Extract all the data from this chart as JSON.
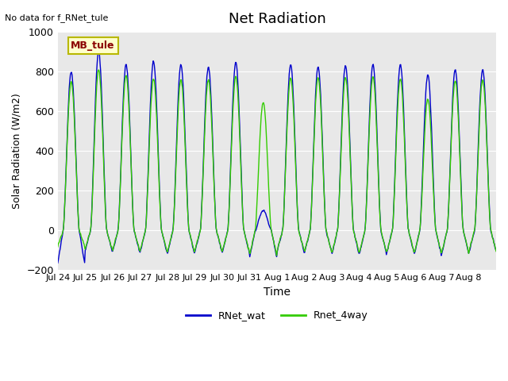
{
  "title": "Net Radiation",
  "xlabel": "Time",
  "ylabel": "Solar Radiation (W/m2)",
  "ylim": [
    -200,
    1000
  ],
  "background_color": "#e8e8e8",
  "figure_color": "#ffffff",
  "no_data_text": "No data for f_RNet_tule",
  "annotation_text": "MB_tule",
  "annotation_color": "#8b0000",
  "annotation_bg": "#ffffcc",
  "annotation_border": "#b8b800",
  "line1_color": "#0000cc",
  "line2_color": "#33cc00",
  "line1_label": "RNet_wat",
  "line2_label": "Rnet_4way",
  "xtick_labels": [
    "Jul 24",
    "Jul 25",
    "Jul 26",
    "Jul 27",
    "Jul 28",
    "Jul 29",
    "Jul 30",
    "Jul 31",
    "Aug 1",
    "Aug 2",
    "Aug 3",
    "Aug 4",
    "Aug 5",
    "Aug 6",
    "Aug 7",
    "Aug 8"
  ],
  "n_days": 16,
  "yticks": [
    -200,
    0,
    200,
    400,
    600,
    800,
    1000
  ],
  "day_peak_blue": [
    800,
    900,
    835,
    850,
    835,
    825,
    845,
    100,
    835,
    825,
    830,
    835,
    835,
    785,
    810,
    810
  ],
  "day_peak_green": [
    750,
    810,
    780,
    765,
    760,
    760,
    775,
    645,
    770,
    770,
    770,
    775,
    765,
    660,
    755,
    760
  ],
  "day_trough_blue": [
    -165,
    -100,
    -105,
    -110,
    -115,
    -105,
    -110,
    -130,
    -105,
    -110,
    -115,
    -115,
    -110,
    -120,
    -115,
    -105
  ],
  "day_trough_green": [
    -80,
    -95,
    -100,
    -105,
    -110,
    -100,
    -105,
    -120,
    -100,
    -105,
    -110,
    -110,
    -105,
    -115,
    -110,
    -100
  ]
}
